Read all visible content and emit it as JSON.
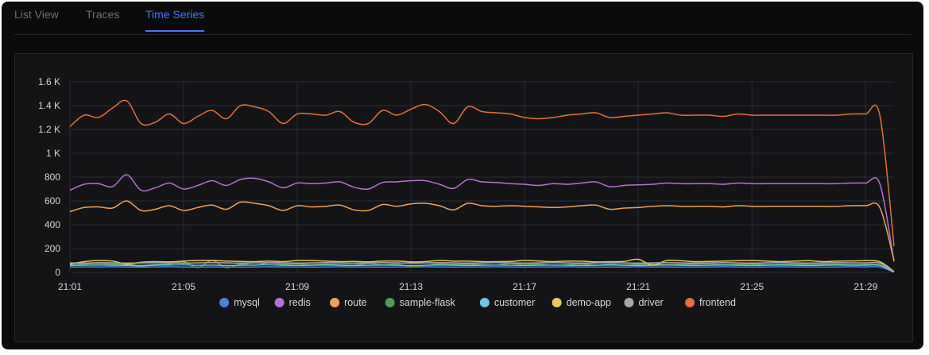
{
  "tabs": [
    {
      "label": "List View",
      "active": false
    },
    {
      "label": "Traces",
      "active": false
    },
    {
      "label": "Time Series",
      "active": true
    }
  ],
  "chart_data": {
    "type": "line",
    "title": "",
    "xlabel": "",
    "ylabel": "",
    "ylim": [
      0,
      1600
    ],
    "yticks": [
      0,
      200,
      400,
      600,
      800,
      1000,
      1200,
      1400,
      1600
    ],
    "yticklabels": [
      "0",
      "200",
      "400",
      "600",
      "800",
      "1 K",
      "1.2 K",
      "1.4 K",
      "1.6 K"
    ],
    "xticks": [
      0,
      4,
      8,
      12,
      16,
      20,
      24,
      28
    ],
    "xticklabels": [
      "21:01",
      "21:05",
      "21:09",
      "21:13",
      "21:17",
      "21:21",
      "21:25",
      "21:29"
    ],
    "grid": true,
    "legend_position": "bottom",
    "x": [
      0,
      0.5,
      1,
      1.5,
      2,
      2.5,
      3,
      3.5,
      4,
      4.5,
      5,
      5.5,
      6,
      6.5,
      7,
      7.5,
      8,
      8.5,
      9,
      9.5,
      10,
      10.5,
      11,
      11.5,
      12,
      12.5,
      13,
      13.5,
      14,
      14.5,
      15,
      15.5,
      16,
      16.5,
      17,
      17.5,
      18,
      18.5,
      19,
      19.5,
      20,
      20.5,
      21,
      21.5,
      22,
      22.5,
      23,
      23.5,
      24,
      24.5,
      25,
      25.5,
      26,
      26.5,
      27,
      27.5,
      28,
      28.5,
      29
    ],
    "series": [
      {
        "name": "mysql",
        "color": "#4f7fd9",
        "values": [
          45,
          46,
          46,
          47,
          46,
          45,
          46,
          47,
          46,
          45,
          46,
          46,
          45,
          46,
          47,
          46,
          46,
          45,
          46,
          47,
          46,
          46,
          45,
          46,
          46,
          47,
          46,
          45,
          46,
          46,
          47,
          46,
          45,
          46,
          46,
          47,
          46,
          46,
          45,
          46,
          47,
          46,
          46,
          45,
          46,
          46,
          47,
          46,
          45,
          46,
          47,
          46,
          46,
          45,
          46,
          47,
          46,
          45,
          2
        ]
      },
      {
        "name": "redis",
        "color": "#b86fd6",
        "values": [
          690,
          740,
          745,
          720,
          820,
          690,
          710,
          750,
          700,
          730,
          770,
          730,
          780,
          790,
          760,
          710,
          750,
          745,
          750,
          760,
          715,
          700,
          755,
          760,
          770,
          770,
          740,
          705,
          780,
          760,
          755,
          745,
          740,
          730,
          745,
          740,
          750,
          760,
          720,
          730,
          735,
          740,
          750,
          745,
          745,
          745,
          740,
          750,
          745,
          745,
          745,
          745,
          745,
          745,
          745,
          750,
          750,
          745,
          90
        ]
      },
      {
        "name": "route",
        "color": "#eda35e",
        "values": [
          510,
          545,
          550,
          540,
          600,
          520,
          530,
          560,
          520,
          545,
          565,
          530,
          590,
          580,
          560,
          520,
          560,
          550,
          555,
          565,
          525,
          520,
          570,
          555,
          575,
          580,
          560,
          525,
          580,
          560,
          555,
          560,
          555,
          550,
          545,
          550,
          560,
          565,
          530,
          540,
          545,
          555,
          560,
          555,
          555,
          555,
          550,
          560,
          555,
          555,
          555,
          555,
          555,
          555,
          555,
          560,
          560,
          545,
          100
        ]
      },
      {
        "name": "sample-flask",
        "color": "#4f9a5c",
        "values": [
          62,
          70,
          75,
          70,
          65,
          60,
          68,
          72,
          90,
          40,
          100,
          40,
          70,
          60,
          80,
          68,
          72,
          65,
          70,
          66,
          62,
          75,
          65,
          70,
          50,
          60,
          72,
          68,
          70,
          66,
          62,
          75,
          65,
          70,
          60,
          66,
          72,
          62,
          70,
          64,
          68,
          70,
          66,
          68,
          70,
          72,
          66,
          68,
          70,
          66,
          68,
          70,
          66,
          68,
          70,
          66,
          68,
          65,
          5
        ]
      },
      {
        "name": "customer",
        "color": "#6ec6e8",
        "values": [
          58,
          60,
          62,
          60,
          58,
          55,
          60,
          62,
          64,
          60,
          62,
          58,
          60,
          62,
          64,
          60,
          58,
          60,
          62,
          60,
          58,
          60,
          62,
          60,
          58,
          60,
          62,
          60,
          58,
          60,
          62,
          60,
          58,
          60,
          62,
          60,
          58,
          60,
          62,
          60,
          58,
          60,
          62,
          60,
          58,
          60,
          62,
          60,
          58,
          60,
          62,
          60,
          58,
          60,
          62,
          60,
          60,
          58,
          4
        ]
      },
      {
        "name": "demo-app",
        "color": "#e8cb5a",
        "values": [
          70,
          90,
          100,
          95,
          70,
          85,
          90,
          88,
          95,
          100,
          100,
          95,
          92,
          90,
          95,
          90,
          100,
          100,
          95,
          90,
          92,
          88,
          95,
          95,
          88,
          90,
          100,
          95,
          95,
          90,
          90,
          92,
          100,
          96,
          90,
          95,
          94,
          88,
          90,
          92,
          110,
          60,
          100,
          98,
          90,
          92,
          95,
          98,
          100,
          95,
          90,
          95,
          98,
          90,
          95,
          96,
          98,
          90,
          8
        ]
      },
      {
        "name": "driver",
        "color": "#a7a7a7",
        "values": [
          80,
          78,
          82,
          80,
          78,
          80,
          82,
          80,
          78,
          80,
          82,
          80,
          78,
          80,
          82,
          80,
          78,
          80,
          82,
          80,
          78,
          80,
          82,
          80,
          78,
          80,
          82,
          80,
          78,
          80,
          82,
          80,
          78,
          80,
          82,
          80,
          78,
          80,
          82,
          80,
          78,
          80,
          82,
          80,
          78,
          80,
          82,
          80,
          78,
          80,
          82,
          80,
          78,
          80,
          82,
          80,
          80,
          78,
          6
        ]
      },
      {
        "name": "frontend",
        "color": "#e46f3f",
        "values": [
          1225,
          1320,
          1300,
          1380,
          1440,
          1250,
          1260,
          1330,
          1250,
          1310,
          1360,
          1290,
          1400,
          1390,
          1350,
          1250,
          1330,
          1330,
          1320,
          1350,
          1260,
          1250,
          1360,
          1320,
          1370,
          1410,
          1350,
          1250,
          1390,
          1350,
          1340,
          1330,
          1300,
          1290,
          1300,
          1320,
          1330,
          1340,
          1300,
          1310,
          1320,
          1330,
          1340,
          1320,
          1320,
          1320,
          1310,
          1330,
          1320,
          1320,
          1320,
          1320,
          1320,
          1320,
          1320,
          1330,
          1330,
          1320,
          220
        ]
      }
    ]
  }
}
